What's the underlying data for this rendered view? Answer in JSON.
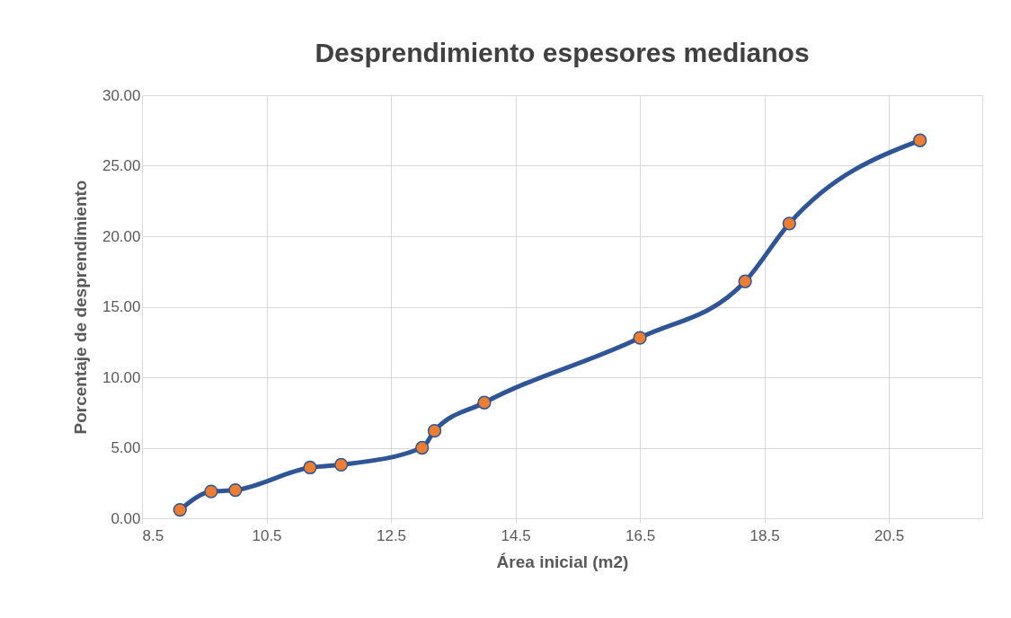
{
  "chart_data": {
    "type": "line",
    "title": "Desprendimiento espesores medianos",
    "xlabel": "Área inicial (m2)",
    "ylabel": "Porcentaje de desprendimiento",
    "x": [
      9.11,
      9.61,
      10.0,
      11.2,
      11.7,
      13.0,
      13.2,
      14.0,
      16.5,
      18.19,
      18.9,
      21.0
    ],
    "series": [
      {
        "color": "#2f5597",
        "values": [
          0.6,
          1.9,
          2.0,
          3.6,
          3.8,
          5.0,
          6.2,
          8.2,
          12.8,
          16.8,
          20.9,
          26.8
        ]
      }
    ],
    "xlim": [
      8.5,
      22.0
    ],
    "xticks": [
      {
        "value": 8.5,
        "label": "8.5"
      },
      {
        "value": 10.5,
        "label": "10.5"
      },
      {
        "value": 12.5,
        "label": "12.5"
      },
      {
        "value": 14.5,
        "label": "14.5"
      },
      {
        "value": 16.5,
        "label": "16.5"
      },
      {
        "value": 18.5,
        "label": "18.5"
      },
      {
        "value": 20.5,
        "label": "20.5"
      }
    ],
    "ylim": [
      0,
      30
    ],
    "yticks": [
      {
        "value": 0,
        "label": "0.00"
      },
      {
        "value": 5,
        "label": "5.00"
      },
      {
        "value": 10,
        "label": "10.00"
      },
      {
        "value": 15,
        "label": "15.00"
      },
      {
        "value": 20,
        "label": "20.00"
      },
      {
        "value": 25,
        "label": "25.00"
      },
      {
        "value": 30,
        "label": "30.00"
      }
    ],
    "grid": true,
    "marker": "circle",
    "line_style": "solid"
  }
}
